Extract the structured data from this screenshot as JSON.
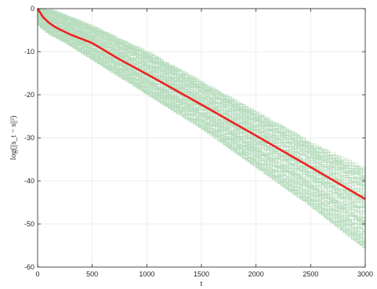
{
  "chart_data": {
    "type": "line",
    "title": "",
    "xlabel": "t",
    "ylabel": "log(||s_t − s||²)",
    "xlim": [
      0,
      3000
    ],
    "ylim": [
      -60,
      0
    ],
    "xticks": [
      0,
      500,
      1000,
      1500,
      2000,
      2500,
      3000
    ],
    "yticks": [
      0,
      -10,
      -20,
      -30,
      -40,
      -50,
      -60
    ],
    "grid": true,
    "legend": "none",
    "colors": {
      "mean": "#ee2222",
      "runs": "#b5dcbd",
      "grid": "#e6e6e6",
      "axis": "#262626"
    },
    "runs_band": {
      "description_values": "envelope of ~200 individual trajectories",
      "t": [
        0,
        100,
        250,
        500,
        1000,
        1500,
        2000,
        2500,
        3000
      ],
      "upper": [
        0,
        0,
        -1.5,
        -4,
        -10,
        -17,
        -24,
        -31,
        -37
      ],
      "lower": [
        -4,
        -6,
        -8,
        -12,
        -20,
        -28,
        -37,
        -46,
        -56
      ]
    },
    "series": [
      {
        "name": "",
        "t": [
          0,
          20,
          50,
          100,
          150,
          200,
          300,
          400,
          500,
          750,
          1000,
          1500,
          2000,
          2500,
          3000
        ],
        "values": [
          0,
          -0.8,
          -2,
          -3.2,
          -4.1,
          -4.8,
          -6,
          -7,
          -8,
          -11.8,
          -15.2,
          -22.3,
          -29.5,
          -36.8,
          -44.2
        ]
      }
    ]
  }
}
